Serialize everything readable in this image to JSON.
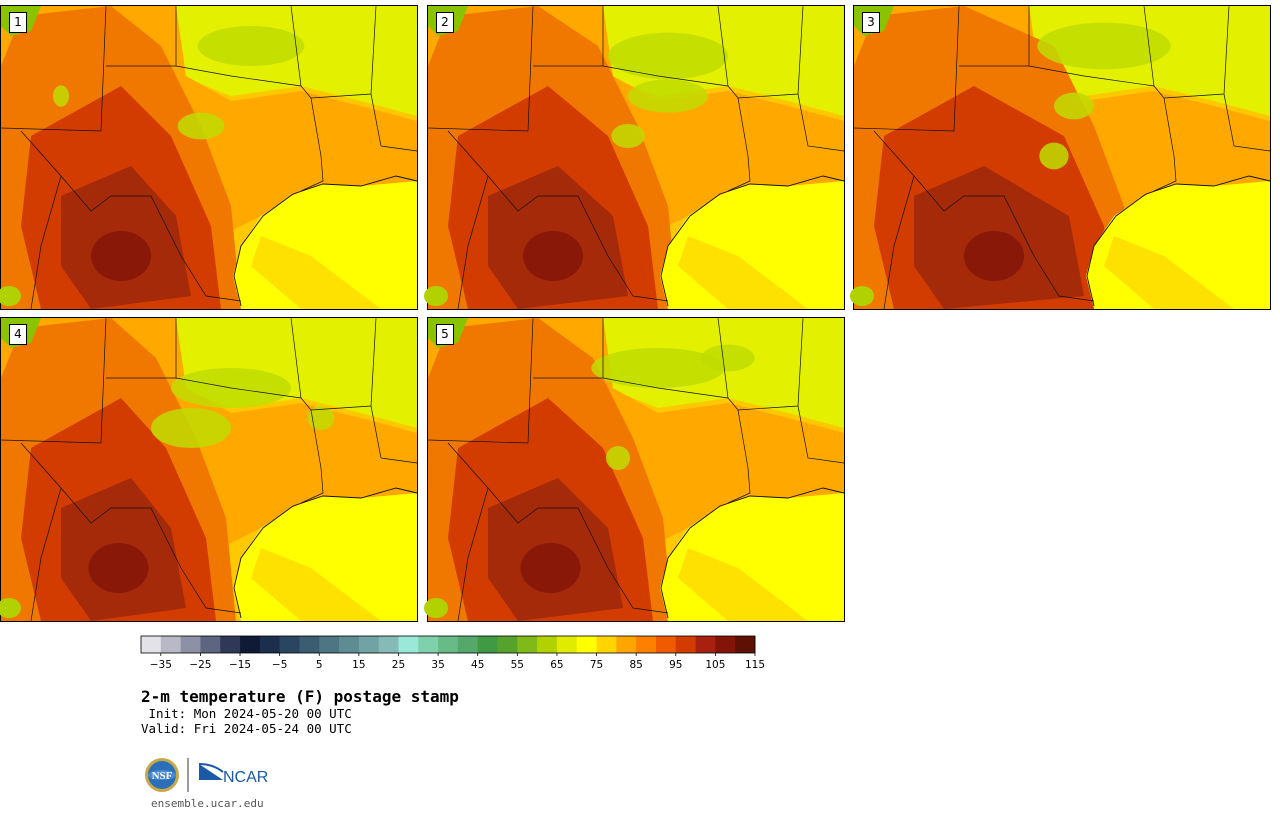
{
  "title": "2-m temperature (F) postage stamp",
  "init_label": "Init:",
  "init_time": "Mon 2024-05-20 00 UTC",
  "valid_label": "Valid:",
  "valid_time": "Fri 2024-05-24 00 UTC",
  "website": "ensemble.ucar.edu",
  "logos": {
    "nsf": "NSF",
    "ncar": "NCAR"
  },
  "members": [
    {
      "label": "1"
    },
    {
      "label": "2"
    },
    {
      "label": "3"
    },
    {
      "label": "4"
    },
    {
      "label": "5"
    }
  ],
  "colorbar": {
    "min": -40,
    "step": 5,
    "colors": [
      "#e2e2e8",
      "#b8b8c6",
      "#8e91a6",
      "#5e6580",
      "#2f3857",
      "#0e1a36",
      "#1b2e4d",
      "#2a4560",
      "#3a5d72",
      "#4d7582",
      "#5f8c92",
      "#72a3a4",
      "#86bab6",
      "#9ae8d8",
      "#7fd1ac",
      "#68ba86",
      "#55a86a",
      "#409a43",
      "#55a32c",
      "#80ba18",
      "#b2d100",
      "#e0eb00",
      "#ffff00",
      "#ffd400",
      "#ffa500",
      "#ff7f00",
      "#f05a00",
      "#d23c00",
      "#a82010",
      "#821408",
      "#5e1004"
    ],
    "tick_labels": [
      "−35",
      "−25",
      "−15",
      "−5",
      "5",
      "15",
      "25",
      "35",
      "45",
      "55",
      "65",
      "75",
      "85",
      "95",
      "105",
      "115"
    ],
    "tick_values": [
      -35,
      -25,
      -15,
      -5,
      5,
      15,
      25,
      35,
      45,
      55,
      65,
      75,
      85,
      95,
      105,
      115
    ]
  },
  "colors": {
    "ocean": "#ffff00",
    "hot": "#a52a0a",
    "warm": "#f07800",
    "mild": "#ffa800",
    "cool": "#e3f000",
    "land": "#ffc800"
  }
}
